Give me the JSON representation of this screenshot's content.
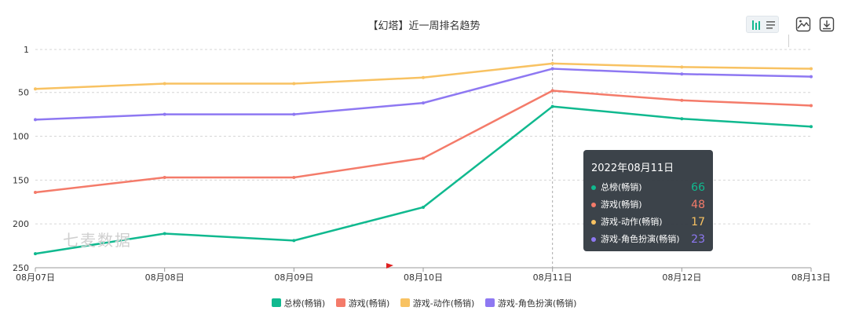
{
  "colors": {
    "s0": "#10b98f",
    "s1": "#f47b6a",
    "s2": "#f8c262",
    "s3": "#8e78f2"
  },
  "watermark": "七麦数据",
  "toolbar": {
    "chart_type_icon": "bar-chart-icon",
    "image_icon": "save-image-icon",
    "download_icon": "download-icon"
  },
  "tooltip": {
    "date": "2022年08月11日",
    "rows": [
      {
        "name": "总榜(畅销)",
        "value": "66"
      },
      {
        "name": "游戏(畅销)",
        "value": "48"
      },
      {
        "name": "游戏-动作(畅销)",
        "value": "17"
      },
      {
        "name": "游戏-角色扮演(畅销)",
        "value": "23"
      }
    ]
  },
  "chart_data": {
    "type": "line",
    "title": "【幻塔】近一周排名趋势",
    "x": [
      "08月07日",
      "08月08日",
      "08月09日",
      "08月10日",
      "08月11日",
      "08月12日",
      "08月13日"
    ],
    "y_ticks": [
      "1",
      "50",
      "100",
      "150",
      "200",
      "250"
    ],
    "ylim": [
      1,
      250
    ],
    "y_inverted": true,
    "grid": true,
    "legend_position": "bottom",
    "series": [
      {
        "name": "总榜(畅销)",
        "values": [
          234,
          211,
          219,
          181,
          66,
          80,
          89
        ]
      },
      {
        "name": "游戏(畅销)",
        "values": [
          164,
          147,
          147,
          125,
          48,
          59,
          65
        ]
      },
      {
        "name": "游戏-动作(畅销)",
        "values": [
          46,
          40,
          40,
          33,
          17,
          21,
          23
        ]
      },
      {
        "name": "游戏-角色扮演(畅销)",
        "values": [
          81,
          75,
          75,
          62,
          23,
          29,
          32
        ]
      }
    ],
    "highlight_x": "08月11日"
  }
}
